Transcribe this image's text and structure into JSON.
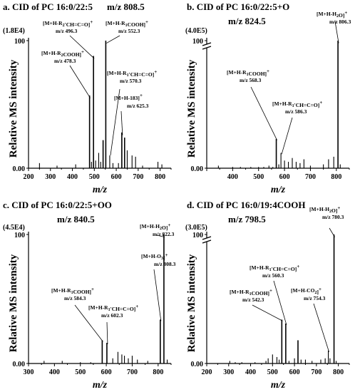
{
  "chart_data": [
    {
      "type": "bar",
      "title": "a. CID of PC 16:0/22:5",
      "subtitle": "m/z 808.5",
      "scale_label": "(1.8E4)",
      "xlabel": "m/z",
      "ylabel": "Relative MS intensity",
      "xlim": [
        200,
        850
      ],
      "ylim": [
        0,
        100
      ],
      "xticks": [
        200,
        300,
        400,
        500,
        600,
        700,
        800
      ],
      "yticks": [
        {
          "value": 0,
          "label": "0.00"
        },
        {
          "value": 100,
          "label": "100"
        }
      ],
      "axis_break": false,
      "peaks": [
        [
          250,
          4
        ],
        [
          330,
          2
        ],
        [
          415,
          3
        ],
        [
          478.3,
          57
        ],
        [
          487,
          5
        ],
        [
          496.3,
          88
        ],
        [
          506,
          6
        ],
        [
          520,
          12
        ],
        [
          529,
          5
        ],
        [
          540,
          22
        ],
        [
          552.3,
          100
        ],
        [
          570.3,
          10
        ],
        [
          585,
          4
        ],
        [
          610,
          4
        ],
        [
          625.3,
          28
        ],
        [
          638,
          24
        ],
        [
          650,
          14
        ],
        [
          672,
          10
        ],
        [
          688,
          9
        ],
        [
          720,
          2
        ],
        [
          790,
          5
        ],
        [
          808,
          3
        ]
      ],
      "annotations": [
        {
          "ion": "[M+H-R₂'CH=C=O]⁺",
          "mz": "m/z 496.3"
        },
        {
          "ion": "[M+H-R₁COOH]⁺",
          "mz": "m/z 552.3"
        },
        {
          "ion": "[M+H-R₂COOH]⁺",
          "mz": "m/z 478.3"
        },
        {
          "ion": "[M+H-R₁'CH=C=O]⁺",
          "mz": "m/z 570.3"
        },
        {
          "ion": "[M+H-183]⁺",
          "mz": "m/z 625.3"
        }
      ]
    },
    {
      "type": "bar",
      "title": "b. CID of PC 16:0/22:5+O",
      "subtitle": "m/z 824.5",
      "scale_label": "(4.0E5)",
      "xlabel": "m/z",
      "ylabel": "Relative MS intensity",
      "xlim": [
        300,
        850
      ],
      "ylim": [
        0,
        100
      ],
      "xticks": [
        400,
        500,
        600,
        700,
        800
      ],
      "yticks": [
        {
          "value": 0,
          "label": "0.00"
        },
        {
          "value": 100,
          "label": "100"
        }
      ],
      "axis_break": true,
      "peaks": [
        [
          345,
          2
        ],
        [
          400,
          1
        ],
        [
          430,
          1
        ],
        [
          470,
          1
        ],
        [
          500,
          1
        ],
        [
          520,
          1
        ],
        [
          540,
          2
        ],
        [
          555,
          1
        ],
        [
          568.3,
          23
        ],
        [
          578,
          3
        ],
        [
          586.3,
          12
        ],
        [
          600,
          6
        ],
        [
          615,
          5
        ],
        [
          630,
          8
        ],
        [
          645,
          5
        ],
        [
          660,
          4
        ],
        [
          675,
          7
        ],
        [
          700,
          2
        ],
        [
          750,
          3
        ],
        [
          770,
          7
        ],
        [
          790,
          9
        ],
        [
          806.3,
          100
        ],
        [
          815,
          3
        ]
      ],
      "annotations": [
        {
          "ion": "[M+H-H₂O]⁺",
          "mz": "m/z 806.3"
        },
        {
          "ion": "[M+H-R₁COOH]⁺",
          "mz": "m/z 568.3"
        },
        {
          "ion": "[M+H-R₁'CH=C=O]⁺",
          "mz": "m/z 586.3"
        }
      ]
    },
    {
      "type": "bar",
      "title": "c. CID of PC 16:0/22:5+OO",
      "subtitle": "m/z 840.5",
      "scale_label": "(4.5E4)",
      "xlabel": "m/z",
      "ylabel": "Relative MS intensity",
      "xlim": [
        300,
        850
      ],
      "ylim": [
        0,
        100
      ],
      "xticks": [
        300,
        400,
        500,
        600,
        700,
        800
      ],
      "yticks": [
        {
          "value": 0,
          "label": "0.00"
        },
        {
          "value": 100,
          "label": "100"
        }
      ],
      "axis_break": false,
      "peaks": [
        [
          360,
          2
        ],
        [
          430,
          2
        ],
        [
          500,
          1
        ],
        [
          540,
          1
        ],
        [
          584.3,
          18
        ],
        [
          602.3,
          16
        ],
        [
          625,
          4
        ],
        [
          645,
          9
        ],
        [
          660,
          7
        ],
        [
          670,
          6
        ],
        [
          685,
          4
        ],
        [
          700,
          6
        ],
        [
          720,
          3
        ],
        [
          760,
          2
        ],
        [
          808.3,
          34
        ],
        [
          822.3,
          100
        ],
        [
          835,
          3
        ]
      ],
      "annotations": [
        {
          "ion": "[M+H-H₂O]⁺",
          "mz": "m/z 822.3"
        },
        {
          "ion": "[M+H-O₃]⁺",
          "mz": "m/z 808.3"
        },
        {
          "ion": "[M+H-R₁COOH]⁺",
          "mz": "m/z 584.3"
        },
        {
          "ion": "[M+H-R₁'CH=C=O]⁺",
          "mz": "m/z 602.3"
        }
      ]
    },
    {
      "type": "bar",
      "title": "d. CID of PC 16:0/19:4COOH",
      "subtitle": "m/z 798.5",
      "scale_label": "(3.0E5)",
      "xlabel": "m/z",
      "ylabel": "Relative MS intensity",
      "xlim": [
        200,
        850
      ],
      "ylim": [
        0,
        100
      ],
      "xticks": [
        200,
        300,
        400,
        500,
        600,
        700,
        800
      ],
      "yticks": [
        {
          "value": 0,
          "label": "0.00"
        },
        {
          "value": 100,
          "label": "100"
        }
      ],
      "axis_break": true,
      "peaks": [
        [
          305,
          2
        ],
        [
          330,
          1
        ],
        [
          360,
          1
        ],
        [
          420,
          1
        ],
        [
          470,
          2
        ],
        [
          480,
          4
        ],
        [
          500,
          7
        ],
        [
          520,
          5
        ],
        [
          530,
          3
        ],
        [
          542.3,
          34
        ],
        [
          560.3,
          31
        ],
        [
          575,
          2
        ],
        [
          600,
          4
        ],
        [
          616,
          18
        ],
        [
          630,
          3
        ],
        [
          650,
          3
        ],
        [
          680,
          2
        ],
        [
          720,
          3
        ],
        [
          740,
          4
        ],
        [
          754.3,
          10
        ],
        [
          762,
          4
        ],
        [
          780.3,
          100
        ],
        [
          790,
          2
        ]
      ],
      "annotations": [
        {
          "ion": "[M+H-H₂O]⁺",
          "mz": "m/z 780.3"
        },
        {
          "ion": "[M+H-R₁'CH=C=O]⁺",
          "mz": "m/z 560.3"
        },
        {
          "ion": "[M+H-R₁COOH]⁺",
          "mz": "m/z 542.3"
        },
        {
          "ion": "[M+H-CO₂]⁺",
          "mz": "m/z 754.3"
        }
      ]
    }
  ]
}
